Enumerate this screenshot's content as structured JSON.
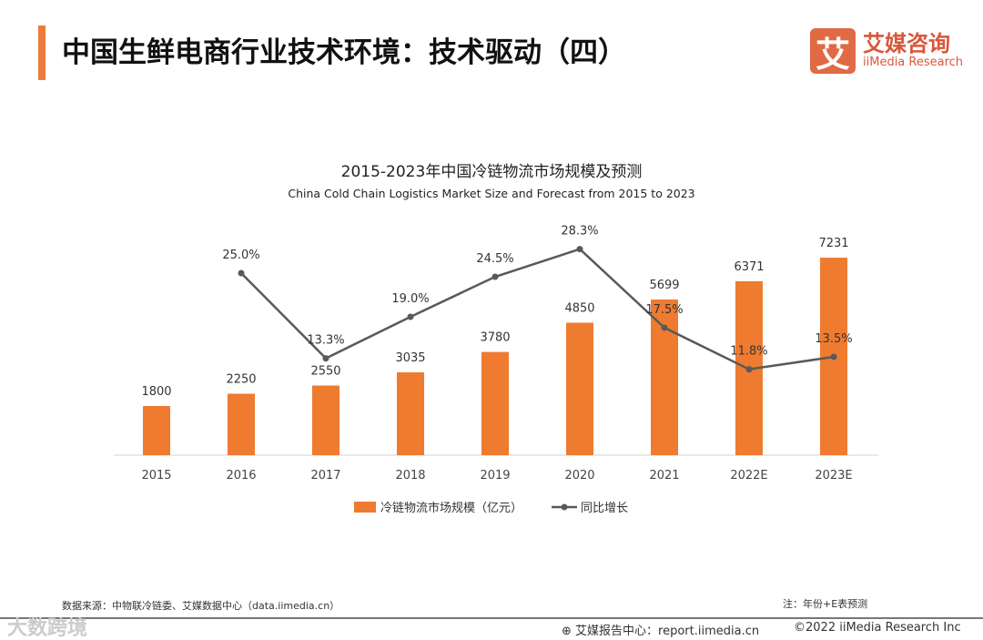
{
  "header": {
    "title": "中国生鲜电商行业技术环境：技术驱动（四）",
    "logo_icon_text": "艾",
    "logo_cn": "艾媒咨询",
    "logo_en": "iiMedia Research"
  },
  "chart_data": {
    "type": "bar",
    "title": "2015-2023年中国冷链物流市场规模及预测",
    "subtitle": "China Cold Chain Logistics Market Size and Forecast from 2015 to 2023",
    "categories": [
      "2015",
      "2016",
      "2017",
      "2018",
      "2019",
      "2020",
      "2021",
      "2022E",
      "2023E"
    ],
    "series": [
      {
        "name": "冷链物流市场规模（亿元）",
        "type": "bar",
        "color": "#ee7b30",
        "values": [
          1800,
          2250,
          2550,
          3035,
          3780,
          4850,
          5699,
          6371,
          7231
        ]
      },
      {
        "name": "同比增长",
        "type": "line",
        "color": "#595959",
        "values": [
          null,
          25.0,
          13.3,
          19.0,
          24.5,
          28.3,
          17.5,
          11.8,
          13.5
        ],
        "labels": [
          "",
          "25.0%",
          "13.3%",
          "19.0%",
          "24.5%",
          "28.3%",
          "17.5%",
          "11.8%",
          "13.5%"
        ]
      }
    ],
    "legend": "bottom"
  },
  "footer": {
    "source": "数据来源：中物联冷链委、艾媒数据中心（data.iimedia.cn）",
    "note": "注：年份+E表预测",
    "report": "艾媒报告中心：report.iimedia.cn",
    "copyright": "©2022  iiMedia Research  Inc",
    "watermark": "大数跨境"
  }
}
